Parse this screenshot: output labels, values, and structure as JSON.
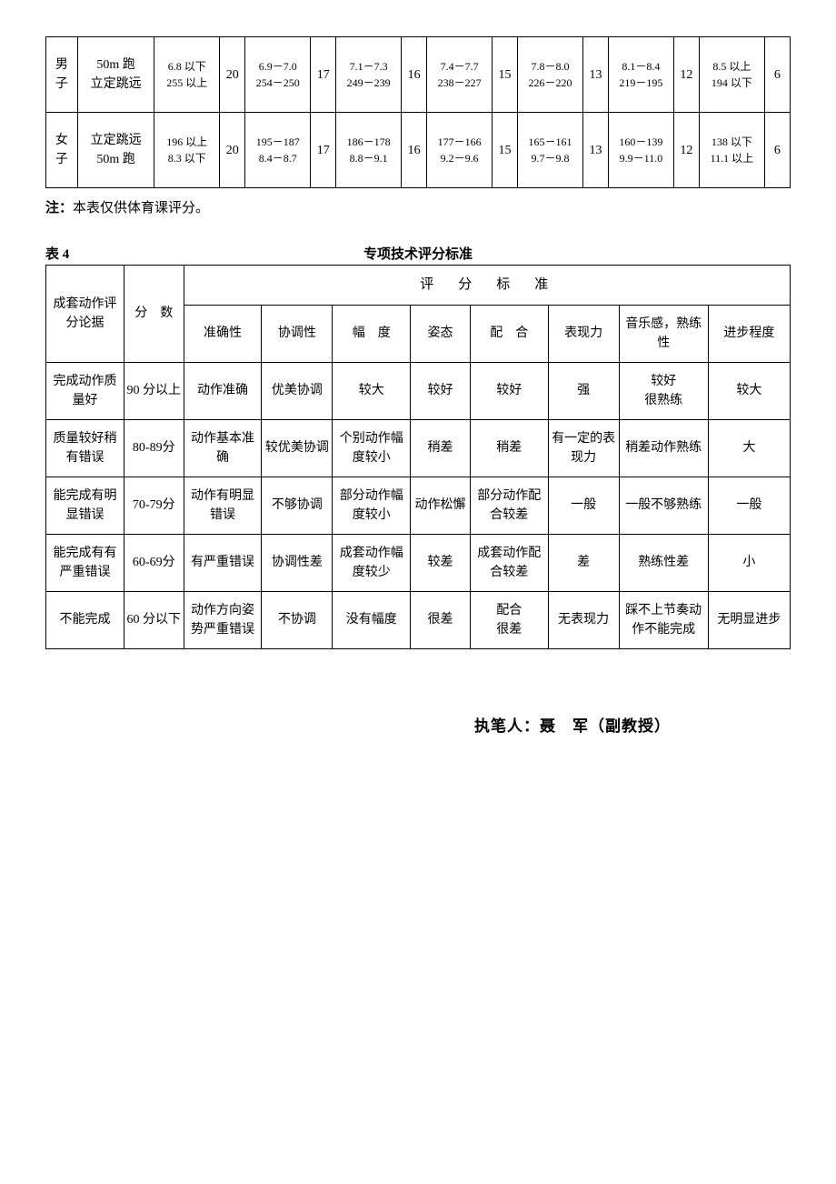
{
  "table1": {
    "rows": [
      {
        "gender": "男子",
        "events": "50m 跑\n立定跳远",
        "cells": [
          {
            "range": "6.8 以下\n255 以上",
            "score": "20"
          },
          {
            "range": "6.9－7.0\n254－250",
            "score": "17"
          },
          {
            "range": "7.1－7.3\n249－239",
            "score": "16"
          },
          {
            "range": "7.4－7.7\n238－227",
            "score": "15"
          },
          {
            "range": "7.8－8.0\n226－220",
            "score": "13"
          },
          {
            "range": "8.1－8.4\n219－195",
            "score": "12"
          },
          {
            "range": "8.5 以上\n194 以下",
            "score": "6"
          }
        ]
      },
      {
        "gender": "女子",
        "events": "立定跳远\n50m 跑",
        "cells": [
          {
            "range": "196 以上\n8.3 以下",
            "score": "20"
          },
          {
            "range": "195－187\n8.4－8.7",
            "score": "17"
          },
          {
            "range": "186－178\n8.8－9.1",
            "score": "16"
          },
          {
            "range": "177－166\n9.2－9.6",
            "score": "15"
          },
          {
            "range": "165－161\n9.7－9.8",
            "score": "13"
          },
          {
            "range": "160－139\n9.9－11.0",
            "score": "12"
          },
          {
            "range": "138 以下\n11.1 以上",
            "score": "6"
          }
        ]
      }
    ]
  },
  "note_label": "注：",
  "note_text": "本表仅供体育课评分。",
  "table2_label": "表 4",
  "table2_title": "专项技术评分标准",
  "table2": {
    "corner1": "成套动作评分论据",
    "corner2": "分　数",
    "super_header": "评　分　标　准",
    "headers": [
      "准确性",
      "协调性",
      "幅　度",
      "姿态",
      "配　合",
      "表现力",
      "音乐感，熟练性",
      "进步程度"
    ],
    "rows": [
      {
        "c0": "完成动作质量好",
        "c1": "90 分以上",
        "v": [
          "动作准确",
          "优美协调",
          "较大",
          "较好",
          "较好",
          "强",
          "较好\n很熟练",
          "较大"
        ]
      },
      {
        "c0": "质量较好稍有错误",
        "c1": "80-89分",
        "v": [
          "动作基本准确",
          "较优美协调",
          "个别动作幅度较小",
          "稍差",
          "稍差",
          "有一定的表现力",
          "稍差动作熟练",
          "大"
        ]
      },
      {
        "c0": "能完成有明显错误",
        "c1": "70-79分",
        "v": [
          "动作有明显错误",
          "不够协调",
          "部分动作幅度较小",
          "动作松懈",
          "部分动作配合较差",
          "一般",
          "一般不够熟练",
          "一般"
        ]
      },
      {
        "c0": "能完成有有严重错误",
        "c1": "60-69分",
        "v": [
          "有严重错误",
          "协调性差",
          "成套动作幅度较少",
          "较差",
          "成套动作配合较差",
          "差",
          "熟练性差",
          "小"
        ]
      },
      {
        "c0": "不能完成",
        "c1": "60 分以下",
        "v": [
          "动作方向姿势严重错误",
          "不协调",
          "没有幅度",
          "很差",
          "配合\n很差",
          "无表现力",
          "踩不上节奏动作不能完成",
          "无明显进步"
        ]
      }
    ]
  },
  "author": "执笔人：聂　军（副教授）"
}
